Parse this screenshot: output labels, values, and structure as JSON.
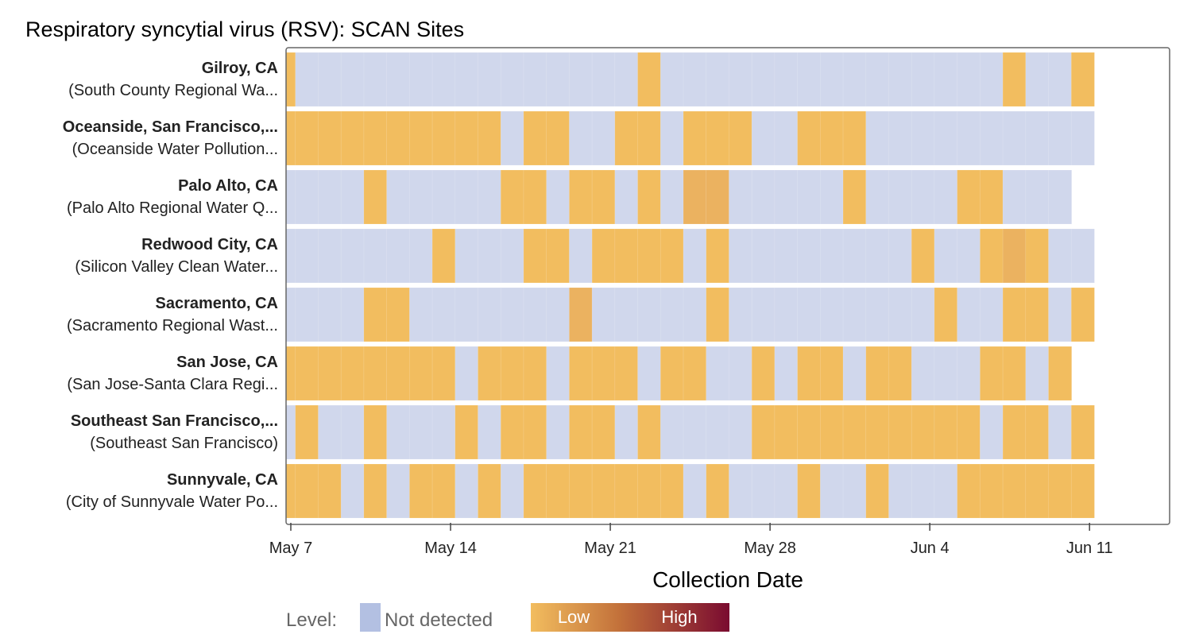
{
  "chart_data": {
    "type": "heatmap",
    "title": "Respiratory syncytial virus (RSV): SCAN Sites",
    "xlabel": "Collection Date",
    "x_start": "May 7",
    "x_ticks": [
      {
        "label": "May 7",
        "day": 0
      },
      {
        "label": "May 14",
        "day": 7
      },
      {
        "label": "May 21",
        "day": 14
      },
      {
        "label": "May 28",
        "day": 21
      },
      {
        "label": "Jun 4",
        "day": 28
      },
      {
        "label": "Jun 11",
        "day": 35
      }
    ],
    "x_range_days": [
      -0.2,
      38.4
    ],
    "level_codes": "0 = Not detected, 1 = Low, 2 = slightly elevated low; first column begins ~May 7, each column = 1 day",
    "rows": [
      {
        "name": "Gilroy, CA",
        "site": "(South County Regional Wa...",
        "values": [
          1,
          0,
          0,
          0,
          0,
          0,
          0,
          0,
          0,
          0,
          0,
          0,
          0,
          0,
          0,
          0,
          1,
          0,
          0,
          0,
          0,
          0,
          0,
          0,
          0,
          0,
          0,
          0,
          0,
          0,
          0,
          0,
          1,
          0,
          0,
          1
        ]
      },
      {
        "name": "Oceanside, San Francisco,...",
        "site": "(Oceanside Water Pollution...",
        "values": [
          1,
          1,
          1,
          1,
          1,
          1,
          1,
          1,
          1,
          1,
          0,
          1,
          1,
          0,
          0,
          1,
          1,
          0,
          1,
          1,
          1,
          0,
          0,
          1,
          1,
          1,
          0,
          0,
          0,
          0,
          0,
          0,
          0,
          0,
          0,
          0
        ]
      },
      {
        "name": "Palo Alto, CA",
        "site": "(Palo Alto Regional Water Q...",
        "values": [
          0,
          0,
          0,
          0,
          1,
          0,
          0,
          0,
          0,
          0,
          1,
          1,
          0,
          1,
          1,
          0,
          1,
          0,
          2,
          2,
          0,
          0,
          0,
          0,
          0,
          1,
          0,
          0,
          0,
          0,
          1,
          1,
          0,
          0,
          0
        ]
      },
      {
        "name": "Redwood City, CA",
        "site": "(Silicon Valley Clean Water...",
        "values": [
          0,
          0,
          0,
          0,
          0,
          0,
          0,
          1,
          0,
          0,
          0,
          1,
          1,
          0,
          1,
          1,
          1,
          1,
          0,
          1,
          0,
          0,
          0,
          0,
          0,
          0,
          0,
          0,
          1,
          0,
          0,
          1,
          2,
          1,
          0,
          0
        ]
      },
      {
        "name": "Sacramento, CA",
        "site": "(Sacramento Regional Wast...",
        "values": [
          0,
          0,
          0,
          0,
          1,
          1,
          0,
          0,
          0,
          0,
          0,
          0,
          0,
          2,
          0,
          0,
          0,
          0,
          0,
          1,
          0,
          0,
          0,
          0,
          0,
          0,
          0,
          0,
          0,
          1,
          0,
          0,
          1,
          1,
          0,
          1
        ]
      },
      {
        "name": "San Jose, CA",
        "site": "(San Jose-Santa Clara Regi...",
        "values": [
          1,
          1,
          1,
          1,
          1,
          1,
          1,
          1,
          0,
          1,
          1,
          1,
          0,
          1,
          1,
          1,
          0,
          1,
          1,
          0,
          0,
          1,
          0,
          1,
          1,
          0,
          1,
          1,
          0,
          0,
          0,
          1,
          1,
          0,
          1
        ]
      },
      {
        "name": "Southeast San Francisco,...",
        "site": "(Southeast San Francisco)",
        "values": [
          0,
          1,
          0,
          0,
          1,
          0,
          0,
          0,
          1,
          0,
          1,
          1,
          0,
          1,
          1,
          0,
          1,
          0,
          0,
          0,
          0,
          1,
          1,
          1,
          1,
          1,
          1,
          1,
          1,
          1,
          1,
          0,
          1,
          1,
          0,
          1
        ]
      },
      {
        "name": "Sunnyvale, CA",
        "site": "(City of Sunnyvale Water Po...",
        "values": [
          1,
          1,
          1,
          0,
          1,
          0,
          1,
          1,
          0,
          1,
          0,
          1,
          1,
          1,
          1,
          1,
          1,
          1,
          0,
          1,
          0,
          0,
          0,
          1,
          0,
          0,
          1,
          0,
          0,
          0,
          1,
          1,
          1,
          1,
          1,
          1
        ]
      }
    ],
    "colors": {
      "not_detected": "#d0d7ec",
      "low": "#f2bd5f",
      "low_elevated": "#ebb260",
      "high": "#7a0b30",
      "frame": "#666666",
      "grid_line": "#ffffff"
    },
    "legend": {
      "prefix": "Level:",
      "not_detected_label": "Not detected",
      "low_label": "Low",
      "high_label": "High"
    }
  }
}
